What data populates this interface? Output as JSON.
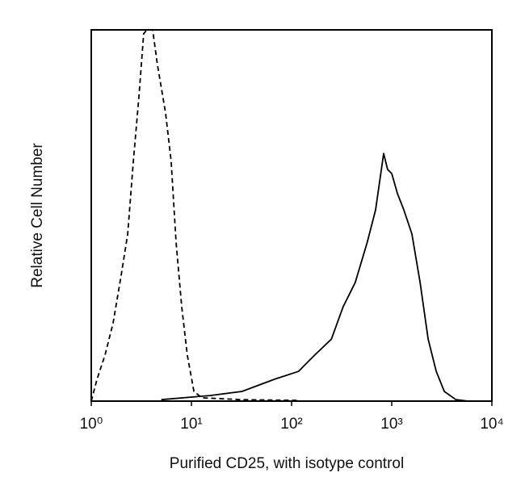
{
  "chart_data": {
    "type": "line",
    "x_label": "Purified CD25, with isotype control",
    "y_label": "Relative Cell Number",
    "xscale": "log",
    "xlim": [
      1,
      10000
    ],
    "xticks": [
      {
        "value": 1,
        "label": "10⁰"
      },
      {
        "value": 10,
        "label": "10¹"
      },
      {
        "value": 100,
        "label": "10²"
      },
      {
        "value": 1000,
        "label": "10³"
      },
      {
        "value": 10000,
        "label": "10⁴"
      }
    ],
    "ylim": [
      0,
      100
    ],
    "series": [
      {
        "color": "#000000",
        "dashed": true,
        "x": [
          1,
          1.14,
          1.37,
          1.65,
          1.99,
          2.31,
          2.63,
          2.99,
          3.34,
          3.6,
          4.1,
          4.58,
          5.52,
          6.28,
          7.03,
          8.0,
          9.1,
          10.6,
          12.7,
          32,
          117
        ],
        "values": [
          0,
          5.9,
          12.4,
          21,
          34,
          45,
          64.6,
          82,
          99,
          100,
          100,
          90.6,
          77.6,
          64.6,
          42.8,
          25.4,
          12.4,
          2.6,
          0.9,
          0.4,
          0.2
        ]
      },
      {
        "color": "#000000",
        "dashed": false,
        "x": [
          5,
          15.3,
          32,
          67.6,
          117,
          170,
          250,
          327,
          433,
          570,
          690,
          830,
          910,
          1000,
          1140,
          1320,
          1590,
          1920,
          2310,
          2780,
          3350,
          4370,
          5800
        ],
        "values": [
          0.4,
          1.5,
          2.6,
          5.9,
          8,
          12.4,
          16.7,
          25.4,
          32,
          42.8,
          51.5,
          66.7,
          62.4,
          61.3,
          55.9,
          51.5,
          45,
          32,
          16.7,
          8,
          2.6,
          0.4,
          0
        ]
      }
    ]
  }
}
